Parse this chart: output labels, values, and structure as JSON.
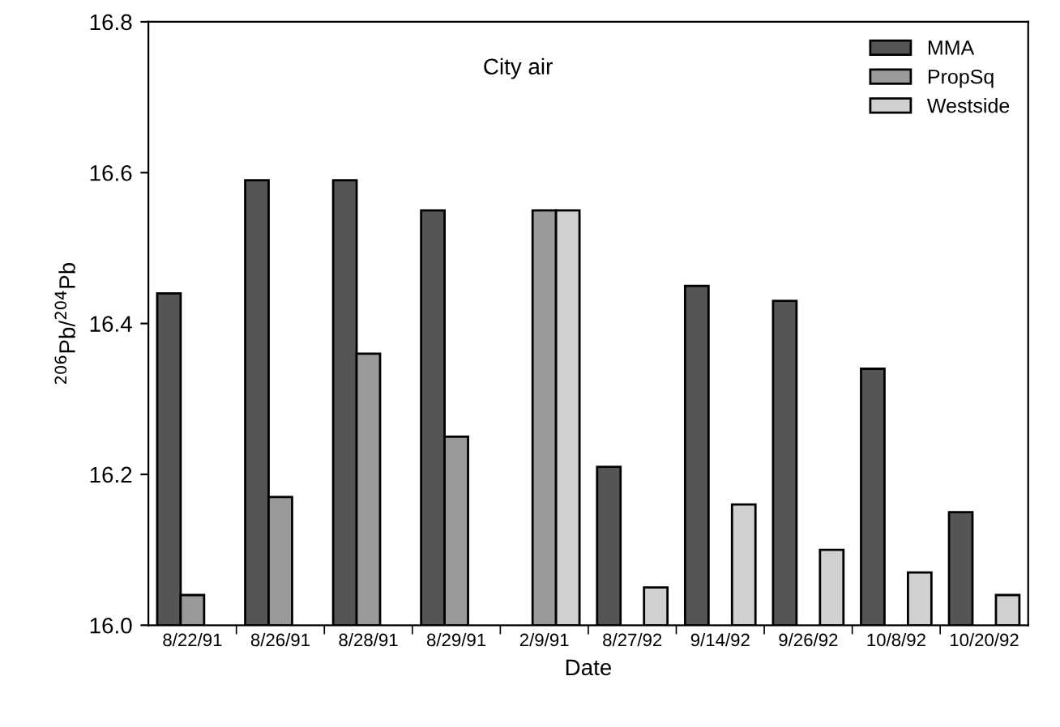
{
  "chart_data": {
    "type": "bar",
    "title": "City air",
    "xlabel": "Date",
    "ylabel": "$^{206}$Pb/$^{204}$Pb",
    "categories": [
      "8/22/91",
      "8/26/91",
      "8/28/91",
      "8/29/91",
      "2/9/91",
      "8/27/92",
      "9/14/92",
      "9/26/92",
      "10/8/92",
      "10/20/92"
    ],
    "series": [
      {
        "name": "MMA",
        "color": "#555555",
        "values": [
          16.44,
          16.59,
          16.59,
          16.55,
          null,
          16.21,
          16.45,
          16.43,
          16.34,
          16.15
        ]
      },
      {
        "name": "PropSq",
        "color": "#9a9a9a",
        "values": [
          16.04,
          16.17,
          16.36,
          16.25,
          16.55,
          null,
          null,
          null,
          null,
          null
        ]
      },
      {
        "name": "Westside",
        "color": "#d0d0d0",
        "values": [
          null,
          null,
          null,
          null,
          16.55,
          16.05,
          16.16,
          16.1,
          16.07,
          16.04
        ]
      }
    ],
    "ylim": [
      16.0,
      16.8
    ],
    "yticks": [
      {
        "value": 16.0,
        "label": "16.0"
      },
      {
        "value": 16.2,
        "label": "16.2"
      },
      {
        "value": 16.4,
        "label": "16.4"
      },
      {
        "value": 16.6,
        "label": "16.6"
      },
      {
        "value": 16.8,
        "label": "16.8"
      }
    ],
    "legend": "top right",
    "grid": false
  }
}
